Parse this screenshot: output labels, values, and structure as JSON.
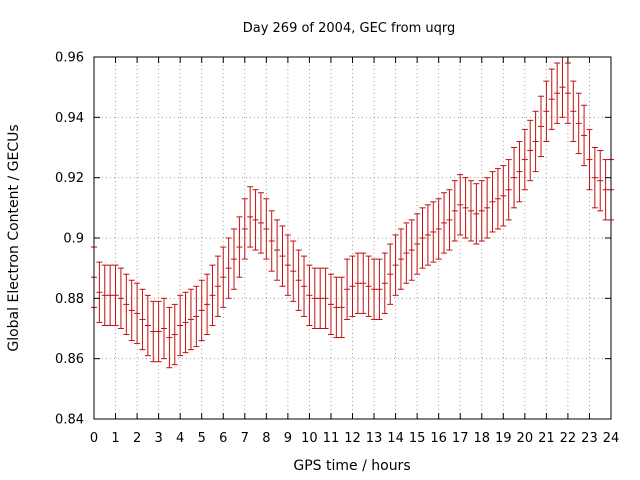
{
  "chart_data": {
    "type": "scatter",
    "title": "Day 269 of 2004, GEC from uqrg",
    "xlabel": "GPS time / hours",
    "ylabel": "Global Electron Content / GECUs",
    "xlim": [
      0,
      24
    ],
    "ylim": [
      0.84,
      0.96
    ],
    "x_ticks": [
      0,
      1,
      2,
      3,
      4,
      5,
      6,
      7,
      8,
      9,
      10,
      11,
      12,
      13,
      14,
      15,
      16,
      17,
      18,
      19,
      20,
      21,
      22,
      23,
      24
    ],
    "y_ticks": [
      0.84,
      0.86,
      0.88,
      0.9,
      0.92,
      0.94,
      0.96
    ],
    "y_tick_labels": [
      "0.84",
      "0.86",
      "0.88",
      "0.9",
      "0.92",
      "0.94",
      "0.96"
    ],
    "grid": true,
    "error_bar_color": "#c01010",
    "series": [
      {
        "x": [
          0,
          0.25,
          0.5,
          0.75,
          1,
          1.25,
          1.5,
          1.75,
          2,
          2.25,
          2.5,
          2.75,
          3,
          3.25,
          3.5,
          3.75,
          4,
          4.25,
          4.5,
          4.75,
          5,
          5.25,
          5.5,
          5.75,
          6,
          6.25,
          6.5,
          6.75,
          7,
          7.25,
          7.5,
          7.75,
          8,
          8.25,
          8.5,
          8.75,
          9,
          9.25,
          9.5,
          9.75,
          10,
          10.25,
          10.5,
          10.75,
          11,
          11.25,
          11.5,
          11.75,
          12,
          12.25,
          12.5,
          12.75,
          13,
          13.25,
          13.5,
          13.75,
          14,
          14.25,
          14.5,
          14.75,
          15,
          15.25,
          15.5,
          15.75,
          16,
          16.25,
          16.5,
          16.75,
          17,
          17.25,
          17.5,
          17.75,
          18,
          18.25,
          18.5,
          18.75,
          19,
          19.25,
          19.5,
          19.75,
          20,
          20.25,
          20.5,
          20.75,
          21,
          21.25,
          21.5,
          21.75,
          22,
          22.25,
          22.5,
          22.75,
          23,
          23.25,
          23.5,
          23.75,
          24
        ],
        "y": [
          0.887,
          0.882,
          0.881,
          0.881,
          0.881,
          0.88,
          0.878,
          0.876,
          0.875,
          0.873,
          0.871,
          0.869,
          0.869,
          0.87,
          0.867,
          0.868,
          0.871,
          0.872,
          0.873,
          0.874,
          0.876,
          0.878,
          0.881,
          0.884,
          0.887,
          0.89,
          0.893,
          0.897,
          0.903,
          0.907,
          0.906,
          0.905,
          0.903,
          0.899,
          0.896,
          0.894,
          0.891,
          0.889,
          0.886,
          0.884,
          0.881,
          0.88,
          0.88,
          0.88,
          0.878,
          0.877,
          0.877,
          0.883,
          0.884,
          0.885,
          0.885,
          0.884,
          0.883,
          0.883,
          0.885,
          0.888,
          0.891,
          0.893,
          0.895,
          0.896,
          0.898,
          0.9,
          0.901,
          0.902,
          0.903,
          0.905,
          0.906,
          0.909,
          0.911,
          0.91,
          0.909,
          0.908,
          0.909,
          0.91,
          0.912,
          0.913,
          0.914,
          0.916,
          0.92,
          0.922,
          0.926,
          0.929,
          0.932,
          0.937,
          0.942,
          0.946,
          0.948,
          0.95,
          0.948,
          0.942,
          0.938,
          0.934,
          0.926,
          0.92,
          0.919,
          0.916,
          0.916
        ],
        "err": [
          0.01,
          0.01,
          0.01,
          0.01,
          0.01,
          0.01,
          0.01,
          0.01,
          0.01,
          0.01,
          0.01,
          0.01,
          0.01,
          0.01,
          0.01,
          0.01,
          0.01,
          0.01,
          0.01,
          0.01,
          0.01,
          0.01,
          0.01,
          0.01,
          0.01,
          0.01,
          0.01,
          0.01,
          0.01,
          0.01,
          0.01,
          0.01,
          0.01,
          0.01,
          0.01,
          0.01,
          0.01,
          0.01,
          0.01,
          0.01,
          0.01,
          0.01,
          0.01,
          0.01,
          0.01,
          0.01,
          0.01,
          0.01,
          0.01,
          0.01,
          0.01,
          0.01,
          0.01,
          0.01,
          0.01,
          0.01,
          0.01,
          0.01,
          0.01,
          0.01,
          0.01,
          0.01,
          0.01,
          0.01,
          0.01,
          0.01,
          0.01,
          0.01,
          0.01,
          0.01,
          0.01,
          0.01,
          0.01,
          0.01,
          0.01,
          0.01,
          0.01,
          0.01,
          0.01,
          0.01,
          0.01,
          0.01,
          0.01,
          0.01,
          0.01,
          0.01,
          0.01,
          0.01,
          0.01,
          0.01,
          0.01,
          0.01,
          0.01,
          0.01,
          0.01,
          0.01,
          0.01
        ]
      }
    ]
  }
}
